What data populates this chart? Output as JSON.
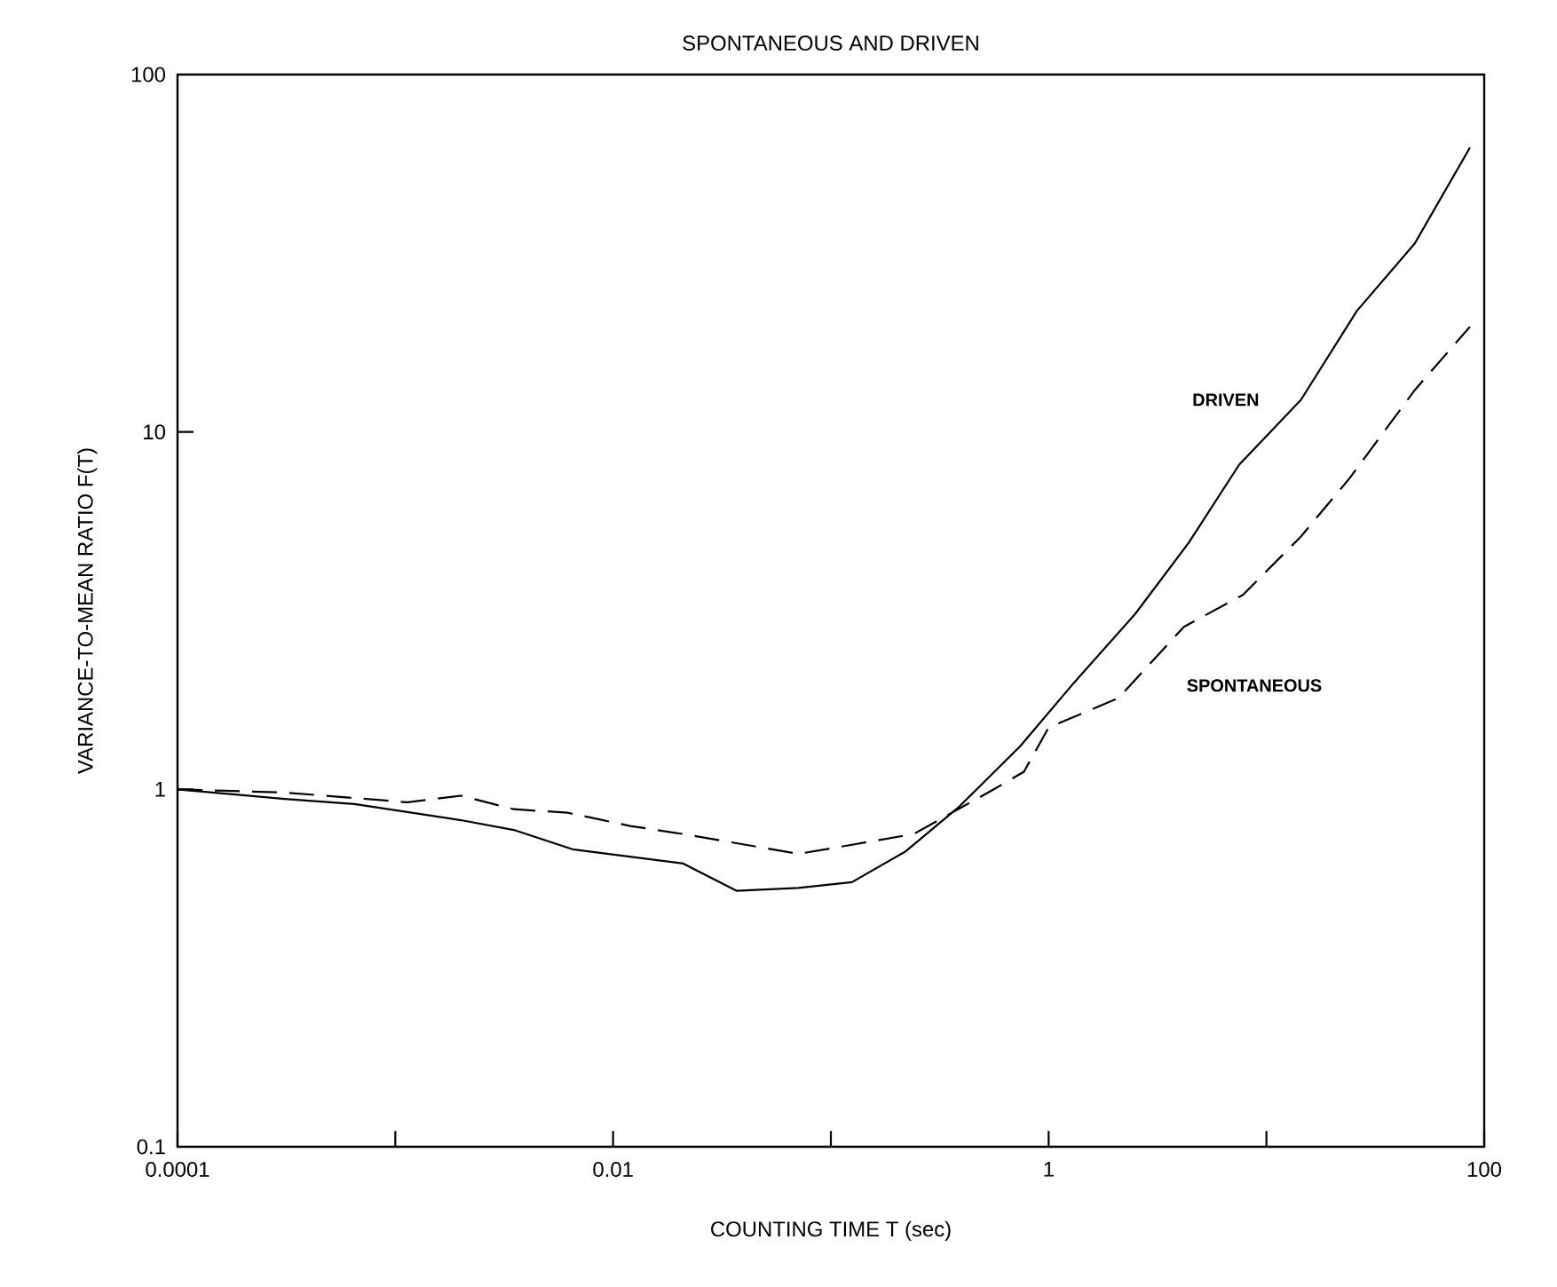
{
  "chart_data": {
    "type": "line",
    "title": "SPONTANEOUS AND DRIVEN",
    "xlabel": "COUNTING TIME T (sec)",
    "ylabel": "VARIANCE-TO-MEAN RATIO F(T)",
    "log": "xy",
    "xlim": [
      0.0001,
      100
    ],
    "ylim": [
      0.1,
      100
    ],
    "xticks": [
      0.0001,
      {
        "value": 0.001,
        "label": null
      },
      0.01,
      {
        "value": 0.1,
        "label": null
      },
      1,
      {
        "value": 10,
        "label": null
      },
      100
    ],
    "yticks": [
      0.1,
      1,
      10,
      100
    ],
    "series": [
      {
        "name": "DRIVEN",
        "color": "#000000",
        "line_style": "solid",
        "x": [
          0.0001,
          0.00031,
          0.00065,
          0.002,
          0.0035,
          0.0065,
          0.021,
          0.037,
          0.071,
          0.125,
          0.22,
          0.385,
          0.74,
          1.3,
          2.5,
          4.4,
          7.5,
          14.4,
          26,
          48,
          86
        ],
        "values": [
          1.0,
          0.94,
          0.91,
          0.82,
          0.77,
          0.68,
          0.62,
          0.52,
          0.53,
          0.55,
          0.67,
          0.89,
          1.32,
          1.98,
          3.1,
          4.9,
          8.1,
          12.3,
          21.8,
          33.7,
          62.5
        ]
      },
      {
        "name": "SPONTANEOUS",
        "color": "#000000",
        "line_style": "dashed",
        "x": [
          0.0001,
          0.00031,
          0.00114,
          0.002,
          0.0035,
          0.0062,
          0.012,
          0.021,
          0.071,
          0.125,
          0.24,
          0.56,
          0.77,
          1.0,
          2.09,
          4.18,
          7.8,
          14.4,
          24,
          48,
          86
        ],
        "values": [
          1.0,
          0.98,
          0.92,
          0.96,
          0.88,
          0.86,
          0.79,
          0.75,
          0.66,
          0.7,
          0.75,
          1.0,
          1.12,
          1.49,
          1.8,
          2.85,
          3.5,
          5.1,
          7.4,
          13.1,
          19.7
        ]
      }
    ]
  }
}
